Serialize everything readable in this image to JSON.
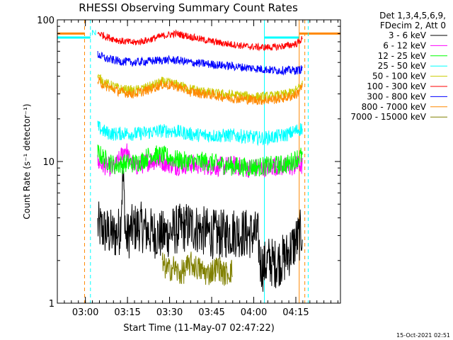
{
  "chart_data": {
    "type": "line",
    "title": "RHESSI Observing Summary Count Rates",
    "xlabel": "Start Time (11-May-07 02:47:22)",
    "ylabel": "Count Rate (s⁻¹ detector⁻¹)",
    "yscale": "log",
    "ylim": [
      1,
      100
    ],
    "xlim_minutes": [
      2.6,
      103.5
    ],
    "y_ticks": [
      "1",
      "10",
      "100"
    ],
    "x_ticks": [
      {
        "label": "03:00",
        "minute": 12.6
      },
      {
        "label": "03:15",
        "minute": 27.6
      },
      {
        "label": "03:30",
        "minute": 42.6
      },
      {
        "label": "03:45",
        "minute": 57.6
      },
      {
        "label": "04:00",
        "minute": 72.6
      },
      {
        "label": "04:15",
        "minute": 87.6
      }
    ],
    "legend": {
      "position": "top-right",
      "header": [
        "Det 1,3,4,5,6,9,",
        "FDecim 2, Att 0"
      ]
    },
    "series": [
      {
        "name": "3 - 6 keV",
        "color": "#000000",
        "x": [
          17,
          20,
          23,
          25,
          26,
          27,
          29,
          32,
          35,
          40,
          45,
          50,
          55,
          60,
          65,
          70,
          74,
          75,
          76,
          78,
          80,
          84,
          87,
          89,
          90
        ],
        "y": [
          3.5,
          3.2,
          3.0,
          3.3,
          7.5,
          2.8,
          3.3,
          3.5,
          3.2,
          3.0,
          3.3,
          3.5,
          3.2,
          3.0,
          3.2,
          3.1,
          3.0,
          1.9,
          1.8,
          2.0,
          1.9,
          2.1,
          2.6,
          3.0,
          3.2
        ]
      },
      {
        "name": "6 - 12 keV",
        "color": "#ff00ff",
        "x": [
          17,
          20,
          23,
          25,
          27,
          28,
          30,
          33,
          36,
          40,
          45,
          50,
          55,
          60,
          65,
          70,
          75,
          80,
          85,
          89,
          90
        ],
        "y": [
          9.8,
          9.3,
          9.0,
          10.5,
          12.5,
          10.5,
          9.2,
          9.6,
          10.2,
          10.0,
          9.3,
          9.6,
          9.4,
          9.2,
          9.4,
          9.0,
          9.0,
          9.3,
          9.1,
          9.5,
          9.3
        ]
      },
      {
        "name": "12 - 25 keV",
        "color": "#00ff00",
        "x": [
          17,
          20,
          23,
          26,
          28,
          30,
          33,
          36,
          40,
          45,
          50,
          55,
          60,
          65,
          70,
          75,
          80,
          85,
          88,
          90
        ],
        "y": [
          11.5,
          10.2,
          9.4,
          9.6,
          9.8,
          9.7,
          10.2,
          11.2,
          11.0,
          10.3,
          9.9,
          10.0,
          9.6,
          9.3,
          9.1,
          9.2,
          9.4,
          9.6,
          10.6,
          11.0
        ]
      },
      {
        "name": "25 - 50 keV",
        "color": "#00ffff",
        "x": [
          17,
          20,
          23,
          27,
          30,
          35,
          40,
          45,
          50,
          55,
          60,
          65,
          70,
          75,
          80,
          85,
          88,
          90
        ],
        "y": [
          17.5,
          16.0,
          15.6,
          15.9,
          15.6,
          16.0,
          16.5,
          16.3,
          15.6,
          15.3,
          15.2,
          15.3,
          15.0,
          14.6,
          14.9,
          15.6,
          16.6,
          17.2
        ]
      },
      {
        "name": "50 - 100 keV",
        "color": "#cccc00",
        "x": [
          17,
          20,
          25,
          30,
          35,
          40,
          45,
          50,
          55,
          60,
          65,
          70,
          75,
          80,
          85,
          88,
          90
        ],
        "y": [
          39.5,
          35.5,
          32.5,
          31.5,
          33.5,
          36.5,
          35.0,
          32.5,
          31.0,
          30.0,
          29.5,
          29.0,
          28.5,
          29.0,
          30.0,
          32.0,
          35.0
        ]
      },
      {
        "name": "100 - 300 keV",
        "color": "#ff0000",
        "x": [
          17,
          20,
          25,
          30,
          35,
          40,
          45,
          50,
          55,
          60,
          65,
          70,
          75,
          80,
          85,
          88,
          90
        ],
        "y": [
          81,
          76,
          71,
          69,
          72,
          77,
          80,
          76,
          72,
          69,
          67,
          65,
          64,
          64,
          66,
          68,
          74
        ]
      },
      {
        "name": "300 - 800 keV",
        "color": "#0000ff",
        "x": [
          17,
          20,
          25,
          30,
          35,
          40,
          45,
          50,
          55,
          60,
          65,
          70,
          75,
          80,
          85,
          88,
          90
        ],
        "y": [
          57,
          53,
          51,
          50,
          51,
          52,
          52,
          50,
          49,
          48,
          47,
          46,
          45,
          44,
          44,
          44,
          45
        ]
      },
      {
        "name": "800 - 7000 keV",
        "color": "#ff8800",
        "x": [
          17,
          20,
          25,
          30,
          35,
          40,
          45,
          50,
          55,
          60,
          65,
          70,
          75,
          80,
          85,
          88,
          90
        ],
        "y": [
          37,
          34,
          31,
          30,
          32,
          35,
          34,
          31,
          30,
          29,
          28,
          27.5,
          27,
          27.5,
          28.5,
          30,
          34
        ]
      },
      {
        "name": "7000 - 15000 keV",
        "color": "#808000",
        "x": [
          40,
          42,
          44,
          46,
          48,
          50,
          52,
          54,
          56,
          58,
          60,
          62,
          65
        ],
        "y": [
          1.9,
          1.7,
          1.8,
          1.6,
          1.7,
          1.9,
          1.8,
          1.7,
          1.6,
          1.7,
          1.8,
          1.6,
          1.7
        ]
      }
    ],
    "attenuator_markers": [
      {
        "color": "#ff8800",
        "level": 80,
        "segments": [
          [
            2.6,
            12.3
          ],
          [
            88.8,
            103.5
          ]
        ]
      },
      {
        "color": "#00ffff",
        "level": 75,
        "segments": [
          [
            2.6,
            14.4
          ],
          [
            76.4,
            88.8
          ]
        ]
      }
    ],
    "vertical_markers": [
      {
        "minute": 12.3,
        "color": "#ff8800",
        "style": "dashed"
      },
      {
        "minute": 14.4,
        "color": "#00ffff",
        "style": "dashed"
      },
      {
        "minute": 76.4,
        "color": "#00ffff",
        "style": "solid"
      },
      {
        "minute": 88.8,
        "color": "#ff8800",
        "style": "solid"
      },
      {
        "minute": 90.8,
        "color": "#ff8800",
        "style": "dashed"
      },
      {
        "minute": 92.0,
        "color": "#00ffff",
        "style": "dashed"
      }
    ],
    "annotations": [
      {
        "text": "N",
        "minute": 14.7,
        "value": 78,
        "color": "#00ffff"
      }
    ],
    "footer_timestamp": "15-Oct-2021 02:51"
  }
}
